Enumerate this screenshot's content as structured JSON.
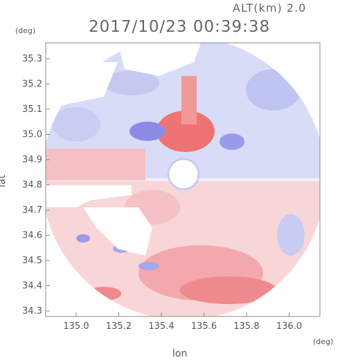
{
  "header": {
    "altitude_label": "ALT(km) 2.0",
    "timestamp": "2017/10/23 00:39:38"
  },
  "axes": {
    "y_unit": "(deg)",
    "x_unit": "(deg)",
    "x_name": "lon",
    "y_name": "lat",
    "x_ticks": [
      "135.0",
      "135.2",
      "135.4",
      "135.6",
      "135.8",
      "136.0"
    ],
    "y_ticks": [
      "35.3",
      "35.2",
      "35.1",
      "35.0",
      "34.9",
      "34.8",
      "34.7",
      "34.6",
      "34.5",
      "34.4",
      "34.3"
    ]
  },
  "map": {
    "type": "doppler-velocity-radar-ppi",
    "colors": {
      "approaching": "#7a7ae6",
      "receding": "#ee6a6a",
      "neutral": "#f2f2f8",
      "frame": "#888888"
    }
  }
}
